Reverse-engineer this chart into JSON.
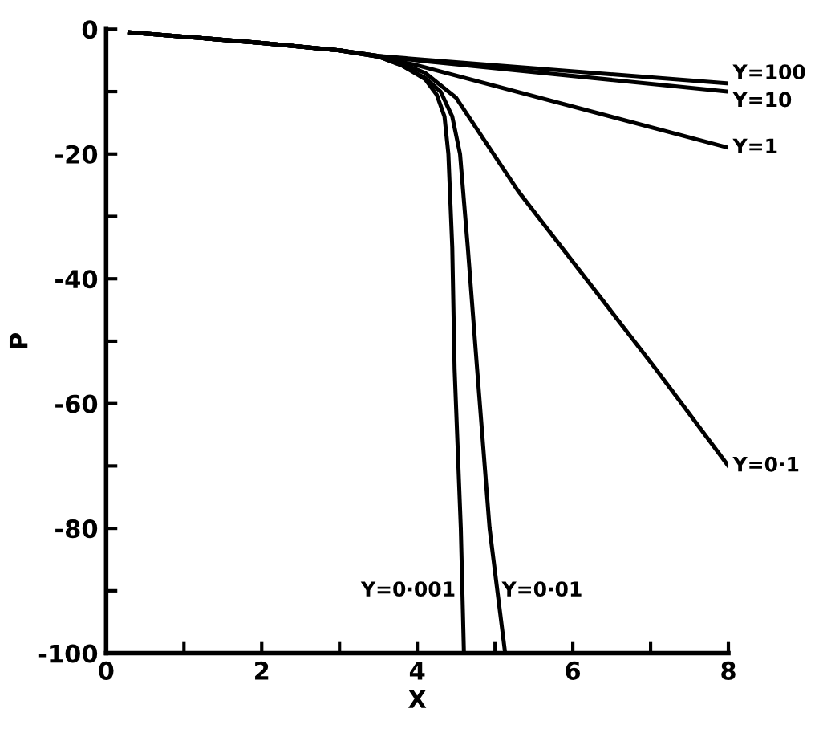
{
  "chart_data": {
    "type": "line",
    "xlabel": "X",
    "ylabel": "P",
    "xlim": [
      0,
      8
    ],
    "ylim": [
      -100,
      0
    ],
    "xticks": [
      0,
      {
        "value": 1,
        "label": null
      },
      2,
      {
        "value": 3,
        "label": null
      },
      4,
      {
        "value": 5,
        "label": null
      },
      6,
      {
        "value": 7,
        "label": null
      },
      8
    ],
    "yticks": [
      {
        "value": -100,
        "label": "-100"
      },
      {
        "value": -90,
        "label": null
      },
      {
        "value": -80,
        "label": "-80"
      },
      {
        "value": -70,
        "label": null
      },
      {
        "value": -60,
        "label": "-60"
      },
      {
        "value": -50,
        "label": null
      },
      {
        "value": -40,
        "label": "-40"
      },
      {
        "value": -30,
        "label": null
      },
      {
        "value": -20,
        "label": "-20"
      },
      {
        "value": -10,
        "label": null
      },
      0
    ],
    "grid": false,
    "legend": false,
    "marker": "none",
    "line_style": "solid",
    "series": [
      {
        "color": "#000000",
        "x": [
          0.3,
          2,
          3,
          3.5,
          4,
          8
        ],
        "values": [
          -0.5,
          -2.2,
          -3.4,
          -4.3,
          -4.8,
          -8.7
        ]
      },
      {
        "color": "#000000",
        "x": [
          0.3,
          2,
          3,
          3.5,
          4,
          8
        ],
        "values": [
          -0.5,
          -2.2,
          -3.4,
          -4.3,
          -5.0,
          -10
        ]
      },
      {
        "color": "#000000",
        "x": [
          0.3,
          2,
          3,
          3.5,
          4,
          8
        ],
        "values": [
          -0.5,
          -2.2,
          -3.4,
          -4.3,
          -5.8,
          -19
        ]
      },
      {
        "color": "#000000",
        "x": [
          0.3,
          2,
          3,
          3.5,
          3.8,
          4.1,
          4.5,
          5.3,
          7.07,
          8
        ],
        "values": [
          -0.5,
          -2.2,
          -3.4,
          -4.4,
          -5.5,
          -7,
          -11,
          -26,
          -54.5,
          -70
        ]
      },
      {
        "color": "#000000",
        "x": [
          0.3,
          2,
          3,
          3.5,
          3.8,
          4.1,
          4.3,
          4.45,
          4.55,
          4.65,
          4.77,
          4.93,
          5.13
        ],
        "values": [
          -0.5,
          -2.2,
          -3.4,
          -4.4,
          -5.8,
          -7.8,
          -10,
          -14,
          -20,
          -35,
          -54.5,
          -80,
          -100
        ]
      },
      {
        "color": "#000000",
        "x": [
          0.3,
          2,
          3,
          3.5,
          3.8,
          4.1,
          4.25,
          4.35,
          4.4,
          4.45,
          4.48,
          4.56,
          4.6
        ],
        "values": [
          -0.5,
          -2.2,
          -3.4,
          -4.4,
          -5.8,
          -8,
          -10.5,
          -14,
          -20,
          -35,
          -54.5,
          -80,
          -100
        ]
      }
    ],
    "annotations": [
      {
        "text": "Y=100",
        "x": 8,
        "y": -8.7
      },
      {
        "text": "Y=10",
        "x": 8,
        "y": -10
      },
      {
        "text": "Y=1",
        "x": 8,
        "y": -19
      },
      {
        "text": "Y=0·1",
        "x": 8,
        "y": -70
      },
      {
        "text": "Y=0·001",
        "x": 4.58,
        "y": -90
      },
      {
        "text": "Y=0·01",
        "x": 5.03,
        "y": -90
      }
    ]
  }
}
